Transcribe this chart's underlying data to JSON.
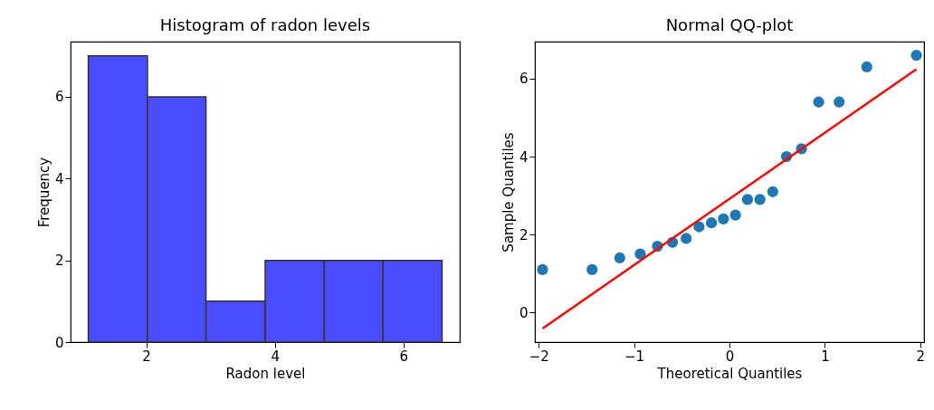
{
  "chart_data": [
    {
      "type": "histogram",
      "title": "Histogram of radon levels",
      "xlabel": "Radon level",
      "ylabel": "Frequency",
      "bins": [
        1.1,
        2.02,
        2.93,
        3.85,
        4.77,
        5.68,
        6.6
      ],
      "values": [
        7,
        6,
        1,
        2,
        2,
        2
      ],
      "color": "#4c4cff",
      "xlim": [
        0.825,
        6.875
      ],
      "xticks": [
        2,
        4,
        6
      ],
      "ylim": [
        0,
        7.35
      ],
      "yticks": [
        0,
        2,
        4,
        6
      ],
      "grid": false
    },
    {
      "type": "scatter",
      "title": "Normal QQ-plot",
      "xlabel": "Theoretical Quantiles",
      "ylabel": "Sample Quantiles",
      "xlim": [
        -2.04,
        2.04
      ],
      "xticks": [
        -2,
        -1,
        0,
        1,
        2
      ],
      "ylim": [
        -0.76,
        6.95
      ],
      "yticks": [
        0,
        2,
        4,
        6
      ],
      "grid": false,
      "series": [
        {
          "type": "scatter",
          "color": "#1f77b4",
          "marker": "circle",
          "x": [
            -1.96,
            -1.44,
            -1.15,
            -0.935,
            -0.755,
            -0.598,
            -0.454,
            -0.319,
            -0.189,
            -0.063,
            0.063,
            0.189,
            0.319,
            0.454,
            0.598,
            0.755,
            0.935,
            1.15,
            1.44,
            1.96
          ],
          "values": [
            1.1,
            1.1,
            1.4,
            1.5,
            1.7,
            1.8,
            1.9,
            2.2,
            2.3,
            2.4,
            2.5,
            2.9,
            2.9,
            3.1,
            4.0,
            4.2,
            5.4,
            5.4,
            6.3,
            6.6
          ]
        },
        {
          "type": "line",
          "color": "#ff0000",
          "line_style": "solid",
          "x": [
            -1.96,
            1.96
          ],
          "values": [
            -0.41,
            6.24
          ]
        }
      ]
    }
  ]
}
